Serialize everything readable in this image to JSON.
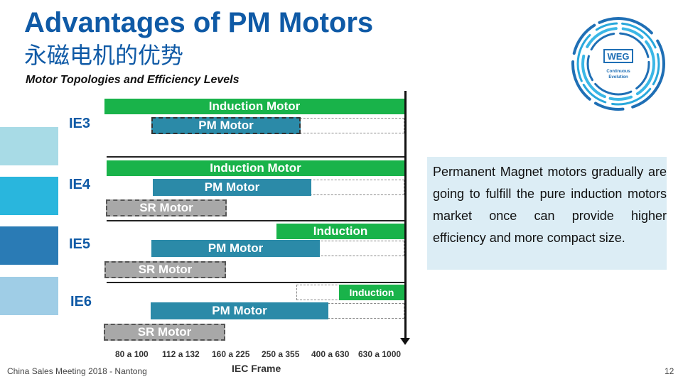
{
  "header": {
    "title": "Advantages of PM Motors",
    "title_cn": "永磁电机的优势",
    "subtitle": "Motor Topologies and Efficiency Levels"
  },
  "levels": [
    {
      "name": "IE3",
      "swatch_color": "#a8dbe6"
    },
    {
      "name": "IE4",
      "swatch_color": "#29b6dd"
    },
    {
      "name": "IE5",
      "swatch_color": "#2a7bb5"
    },
    {
      "name": "IE6",
      "swatch_color": "#9fcde6"
    }
  ],
  "bars": {
    "ie3": {
      "induction": "Induction Motor",
      "pm": "PM Motor"
    },
    "ie4": {
      "induction": "Induction Motor",
      "pm": "PM Motor",
      "sr": "SR Motor"
    },
    "ie5": {
      "induction": "Induction",
      "pm": "PM Motor",
      "sr": "SR Motor"
    },
    "ie6": {
      "induction": "Induction",
      "pm": "PM Motor",
      "sr": "SR Motor"
    }
  },
  "axis": {
    "ticks": [
      "80 a 100",
      "112 a 132",
      "160 a 225",
      "250 a 355",
      "400 a 630",
      "630 a 1000"
    ],
    "xlabel": "IEC Frame"
  },
  "textbox": {
    "text": "Permanent Magnet motors gradually are going to fulfill the pure induction motors market once can provide higher efficiency and more compact size."
  },
  "logo": {
    "brand": "WEG",
    "tagline_1": "Continuous",
    "tagline_2": "Evolution"
  },
  "footer": {
    "left": "China Sales Meeting 2018 - Nantong",
    "page": "12"
  },
  "colors": {
    "title": "#0f5aa6",
    "induction": "#19b34a",
    "pm": "#2b8aa8",
    "sr": "#a8a8a8",
    "textbox_bg": "#dcedf5"
  }
}
